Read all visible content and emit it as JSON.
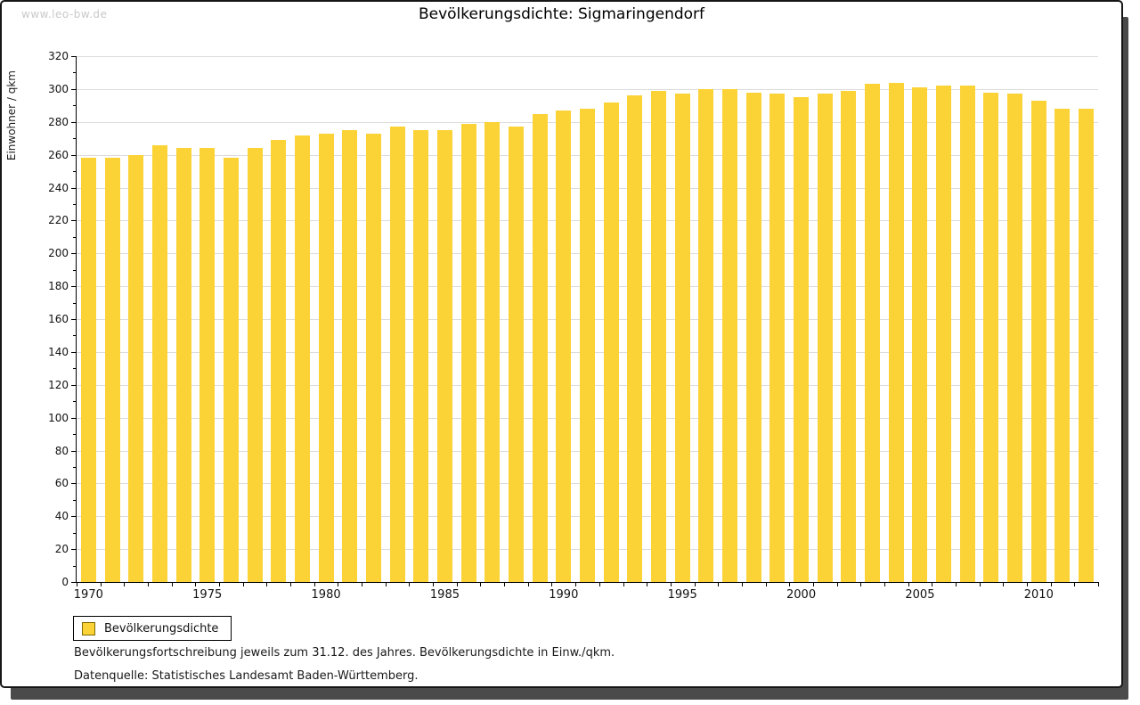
{
  "watermark": "www.leo-bw.de",
  "title": "Bevölkerungsdichte: Sigmaringendorf",
  "legend": {
    "label": "Bevölkerungsdichte",
    "swatch_color": "#FBD336",
    "swatch_border_color": "#7F6A00"
  },
  "footnotes": [
    "Bevölkerungsfortschreibung jeweils zum 31.12. des Jahres. Bevölkerungsdichte in Einw./qkm.",
    "Datenquelle: Statistisches Landesamt Baden-Württemberg."
  ],
  "colors": {
    "bar": "#FBD336",
    "grid": "#dcdcdc",
    "axis": "#000000",
    "watermark": "#c9c9c9",
    "frame_border": "#161616",
    "frame_shadow": "#4a4a4a"
  },
  "chart_data": {
    "type": "bar",
    "title": "Bevölkerungsdichte: Sigmaringendorf",
    "xlabel": "",
    "ylabel": "Einwohner / qkm",
    "ylim": [
      0,
      320
    ],
    "y_major_step": 20,
    "y_minor_step": 10,
    "grid": true,
    "legend_position": "bottom-left",
    "x_labeled_ticks": [
      1970,
      1975,
      1980,
      1985,
      1990,
      1995,
      2000,
      2005,
      2010
    ],
    "categories": [
      1970,
      1971,
      1972,
      1973,
      1974,
      1975,
      1976,
      1977,
      1978,
      1979,
      1980,
      1981,
      1982,
      1983,
      1984,
      1985,
      1986,
      1987,
      1988,
      1989,
      1990,
      1991,
      1992,
      1993,
      1994,
      1995,
      1996,
      1997,
      1998,
      1999,
      2000,
      2001,
      2002,
      2003,
      2004,
      2005,
      2006,
      2007,
      2008,
      2009,
      2010,
      2011,
      2012
    ],
    "values": [
      258,
      258,
      260,
      266,
      264,
      264,
      258,
      264,
      269,
      272,
      273,
      275,
      273,
      277,
      275,
      275,
      279,
      280,
      277,
      285,
      287,
      288,
      292,
      296,
      299,
      297,
      300,
      300,
      298,
      297,
      295,
      297,
      299,
      303,
      304,
      301,
      302,
      302,
      298,
      297,
      293,
      288,
      288
    ],
    "series_name": "Bevölkerungsdichte"
  }
}
